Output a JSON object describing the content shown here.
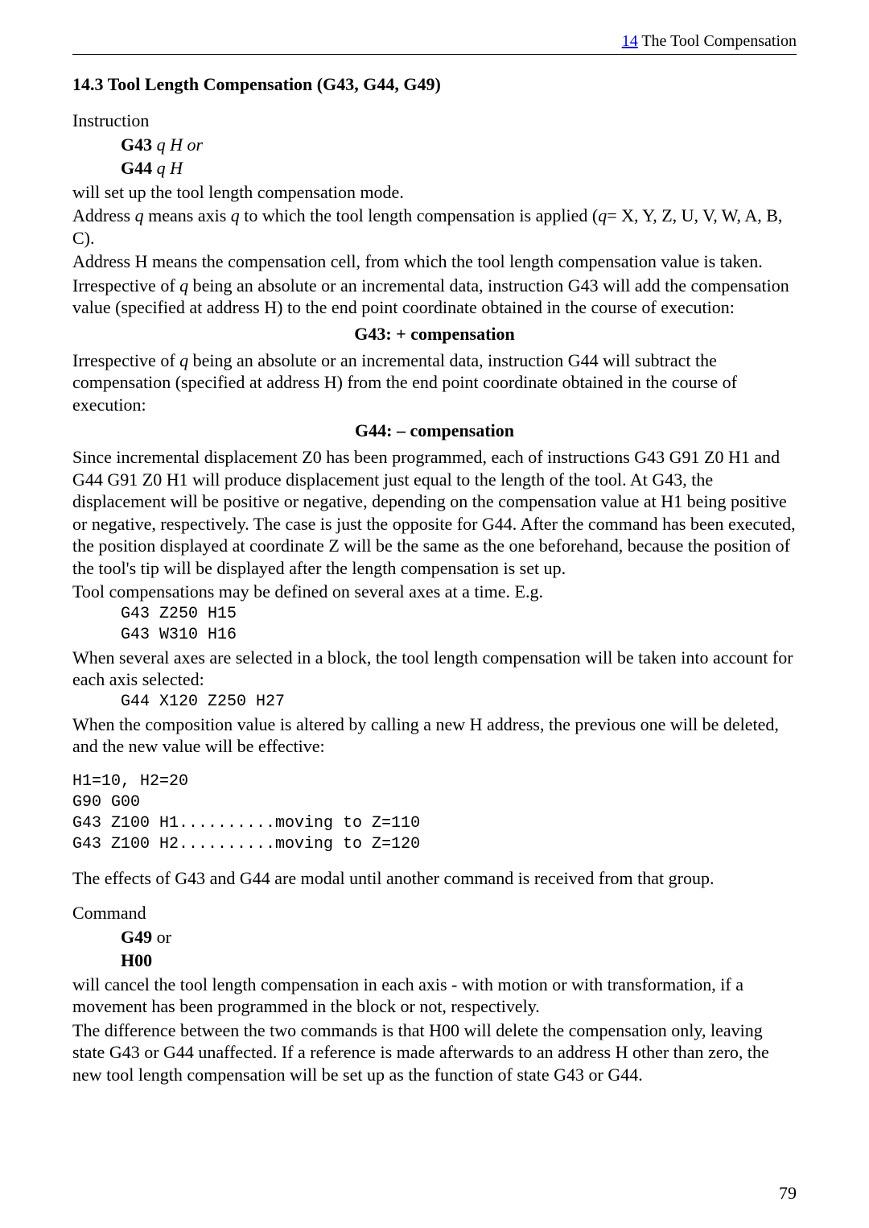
{
  "header": {
    "chapter_num": "14",
    "chapter_title": "The Tool Compensation"
  },
  "section_title": "14.3 Tool Length Compensation (G43, G44, G49)",
  "t_instruction": "Instruction",
  "g43_line": {
    "cmd": "G43",
    "rest": " q H or"
  },
  "g44_line": {
    "cmd": "G44",
    "rest": " q H"
  },
  "p1": "will set up the tool length compensation mode.",
  "p2a": "Address ",
  "p2b": " means axis ",
  "p2c": " to which the tool length compensation is applied (",
  "p2d": "= X, Y, Z, U, V, W, A, B, C).",
  "q": "q",
  "p3": "Address H means the compensation cell, from which the tool length compensation value is taken.",
  "p4a": "Irrespective of ",
  "p4b": " being an absolute or an incremental data, instruction G43 will add the compensation value (specified at address H) to the end point coordinate obtained in the course of execution:",
  "c1": "G43: + compensation",
  "p5a": "Irrespective of ",
  "p5b": " being an absolute or an incremental data, instruction G44 will subtract the compensation (specified at address H) from the end point coordinate obtained in the course of execution:",
  "c2": "G44: – compensation",
  "p6": "Since incremental displacement Z0 has been programmed, each of instructions G43 G91 Z0 H1 and G44 G91 Z0 H1 will produce displacement just equal to the length of the tool. At G43, the displacement will be positive or negative, depending on the compensation value at H1 being positive or negative, respectively. The case is just the opposite for G44. After the command has been executed, the position displayed at coordinate Z will be the same as the one beforehand, because the position of the tool's tip will be displayed after the length compensation is set up.",
  "p7": "Tool compensations may be defined on several axes at a time. E.g.",
  "code1_l1": "G43 Z250 H15",
  "code1_l2": "G43 W310 H16",
  "p8": "When several axes are selected in a block, the tool length compensation will be taken into account for each axis selected:",
  "code2": "G44 X120 Z250 H27",
  "p9": "When the composition value is altered by calling a new H address, the previous one will be deleted, and the new value will be effective:",
  "code3_l1": "H1=10, H2=20",
  "code3_l2": "G90 G00",
  "code3_l3": "G43 Z100 H1..........moving to Z=110",
  "code3_l4": "G43 Z100 H2..........moving to Z=120",
  "p10": "The effects of G43 and G44 are modal until another command is received from that group.",
  "t_command": "Command",
  "g49_line": {
    "cmd": "G49",
    "rest": " or"
  },
  "h00": "H00",
  "p11": "will cancel the tool length compensation in each axis - with motion or with transformation, if a movement has been programmed in the block or not, respectively.",
  "p12": "The difference between the two commands is that H00 will delete the compensation only, leaving state G43 or G44 unaffected. If a reference is made afterwards to an address H other than zero, the new tool length compensation will be set up as the function of state G43 or G44.",
  "page_number": "79"
}
